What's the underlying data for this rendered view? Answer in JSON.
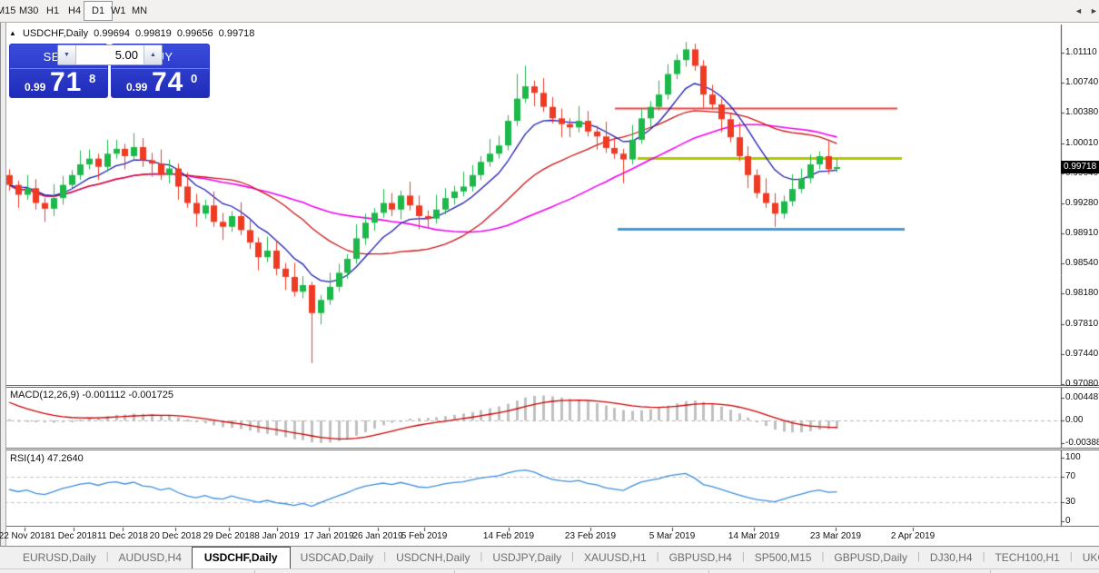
{
  "toolbar": {
    "timeframes": [
      "M15",
      "M30",
      "H1",
      "H4",
      "D1",
      "W1",
      "MN"
    ],
    "active": "D1"
  },
  "header": {
    "symbol": "USDCHF,Daily",
    "open": "0.99694",
    "high": "0.99819",
    "low": "0.99656",
    "close": "0.99718"
  },
  "trade_panel": {
    "sell_label": "SELL",
    "buy_label": "BUY",
    "volume": "5.00",
    "sell_price": {
      "small": "0.99",
      "big": "71",
      "sup": "8"
    },
    "buy_price": {
      "small": "0.99",
      "big": "74",
      "sup": "0"
    }
  },
  "icons": {
    "ohlc_marker": "▲",
    "spinner_up": "▲",
    "spinner_down": "▼",
    "tab_scroll_left": "◄",
    "tab_scroll_right": "►"
  },
  "macd_panel": {
    "label": "MACD(12,26,9) -0.001112 -0.001725",
    "axis_labels": [
      "0.004487",
      "0.00",
      "-0.003883"
    ]
  },
  "rsi_panel": {
    "label": "RSI(14) 47.2640",
    "axis_labels": [
      "100",
      "70",
      "30",
      "0"
    ]
  },
  "tabs": {
    "items": [
      "EURUSD,Daily",
      "AUDUSD,H4",
      "USDCHF,Daily",
      "USDCAD,Daily",
      "USDCNH,Daily",
      "USDJPY,Daily",
      "XAUUSD,H1",
      "GBPUSD,H4",
      "SP500,M15",
      "GBPUSD,Daily",
      "DJ30,H4",
      "TECH100,H1",
      "UKC"
    ],
    "active": "USDCHF,Daily"
  },
  "chart_data": {
    "type": "candlestick",
    "symbol": "USDCHF",
    "timeframe": "Daily",
    "title": "USDCHF,Daily",
    "current_bar": {
      "open": 0.99694,
      "high": 0.99819,
      "low": 0.99656,
      "close": 0.99718
    },
    "y_axis": {
      "labels": [
        "1.01110",
        "1.00740",
        "1.00380",
        "1.00010",
        "0.99640",
        "0.99280",
        "0.98910",
        "0.98540",
        "0.98180",
        "0.97810",
        "0.97440",
        "0.97080"
      ],
      "current_price": "0.99718",
      "range": [
        0.9708,
        1.0111
      ]
    },
    "x_axis": {
      "labels": [
        "22 Nov 2018",
        "1 Dec 2018",
        "11 Dec 2018",
        "20 Dec 2018",
        "29 Dec 2018",
        "8 Jan 2019",
        "17 Jan 2019",
        "26 Jan 2019",
        "5 Feb 2019",
        "14 Feb 2019",
        "23 Feb 2019",
        "5 Mar 2019",
        "14 Mar 2019",
        "23 Mar 2019",
        "2 Apr 2019"
      ]
    },
    "colors": {
      "bull": "#1cb84a",
      "bear": "#ef3a24",
      "ma_fast": "#1b1bb3",
      "ma_mid": "#cc1414",
      "ma_slow": "#f000f0",
      "macd_hist": "#c0c0c0",
      "macd_signal": "#cc0000",
      "rsi": "#3e8ede",
      "hline_red": "#ef4444",
      "hline_olive": "#afc800",
      "hline_blue": "#3e9adb"
    },
    "moving_averages": [
      {
        "name": "fast",
        "period": 8,
        "method": "ema"
      },
      {
        "name": "mid",
        "period": 20,
        "method": "sma"
      },
      {
        "name": "slow",
        "period": 34,
        "method": "sma"
      }
    ],
    "hlines": [
      {
        "price": 1.0044,
        "color_key": "hline_red"
      },
      {
        "price": 0.9983,
        "color_key": "hline_olive"
      },
      {
        "price": 0.9897,
        "color_key": "hline_blue"
      }
    ],
    "macd": {
      "params": [
        12,
        26,
        9
      ],
      "main_current": -0.001112,
      "signal_current": -0.001725
    },
    "rsi": {
      "period": 14,
      "current": 47.264,
      "levels": [
        70,
        30
      ]
    },
    "candles": [
      [
        0.9962,
        0.9969,
        0.9943,
        0.995
      ],
      [
        0.995,
        0.9955,
        0.9922,
        0.9938
      ],
      [
        0.9938,
        0.9962,
        0.9932,
        0.9946
      ],
      [
        0.9946,
        0.9957,
        0.992,
        0.9928
      ],
      [
        0.9928,
        0.9934,
        0.9905,
        0.9921
      ],
      [
        0.9921,
        0.9951,
        0.9912,
        0.9934
      ],
      [
        0.9934,
        0.9961,
        0.9926,
        0.995
      ],
      [
        0.995,
        0.9968,
        0.9946,
        0.9962
      ],
      [
        0.9962,
        0.9992,
        0.9956,
        0.9975
      ],
      [
        0.9975,
        0.9993,
        0.9969,
        0.9982
      ],
      [
        0.9982,
        0.9988,
        0.9956,
        0.9972
      ],
      [
        0.9972,
        1.0005,
        0.9966,
        0.9988
      ],
      [
        0.9988,
        1.0005,
        0.9982,
        0.9994
      ],
      [
        0.9994,
        1.0,
        0.9969,
        0.9985
      ],
      [
        0.9985,
        1.0013,
        0.9979,
        0.9996
      ],
      [
        0.9996,
        1.0007,
        0.9972,
        0.998
      ],
      [
        0.998,
        0.9989,
        0.996,
        0.9976
      ],
      [
        0.9976,
        0.9993,
        0.9956,
        0.9962
      ],
      [
        0.9962,
        0.9981,
        0.9952,
        0.997
      ],
      [
        0.997,
        0.9976,
        0.9932,
        0.9948
      ],
      [
        0.9948,
        0.9965,
        0.9922,
        0.9928
      ],
      [
        0.9928,
        0.9939,
        0.9899,
        0.9915
      ],
      [
        0.9915,
        0.9932,
        0.9909,
        0.9925
      ],
      [
        0.9925,
        0.9942,
        0.9899,
        0.9905
      ],
      [
        0.9905,
        0.9916,
        0.9883,
        0.9899
      ],
      [
        0.9899,
        0.9918,
        0.9893,
        0.9912
      ],
      [
        0.9912,
        0.9929,
        0.9889,
        0.9895
      ],
      [
        0.9895,
        0.9907,
        0.9872,
        0.988
      ],
      [
        0.988,
        0.9886,
        0.9846,
        0.9862
      ],
      [
        0.9862,
        0.9887,
        0.9856,
        0.987
      ],
      [
        0.987,
        0.9882,
        0.984,
        0.9848
      ],
      [
        0.9848,
        0.9855,
        0.9822,
        0.9838
      ],
      [
        0.9838,
        0.9855,
        0.9814,
        0.982
      ],
      [
        0.982,
        0.9839,
        0.9812,
        0.9828
      ],
      [
        0.9828,
        0.9832,
        0.9733,
        0.9794
      ],
      [
        0.9794,
        0.9816,
        0.978,
        0.981
      ],
      [
        0.981,
        0.9843,
        0.9804,
        0.9826
      ],
      [
        0.9826,
        0.9854,
        0.982,
        0.9843
      ],
      [
        0.9843,
        0.9866,
        0.9836,
        0.986
      ],
      [
        0.986,
        0.9902,
        0.9854,
        0.9885
      ],
      [
        0.9885,
        0.9915,
        0.9877,
        0.9904
      ],
      [
        0.9904,
        0.9922,
        0.9894,
        0.9916
      ],
      [
        0.9916,
        0.9945,
        0.991,
        0.9928
      ],
      [
        0.9928,
        0.994,
        0.9912,
        0.992
      ],
      [
        0.992,
        0.9943,
        0.9908,
        0.9937
      ],
      [
        0.9937,
        0.9954,
        0.9919,
        0.9925
      ],
      [
        0.9925,
        0.9937,
        0.9896,
        0.9912
      ],
      [
        0.9912,
        0.9919,
        0.9898,
        0.9909
      ],
      [
        0.9909,
        0.9938,
        0.9903,
        0.992
      ],
      [
        0.992,
        0.9946,
        0.9914,
        0.9934
      ],
      [
        0.9934,
        0.9949,
        0.9926,
        0.9942
      ],
      [
        0.9942,
        0.9966,
        0.9936,
        0.9948
      ],
      [
        0.9948,
        0.9974,
        0.9942,
        0.9962
      ],
      [
        0.9962,
        0.9985,
        0.9956,
        0.9978
      ],
      [
        0.9978,
        1.0006,
        0.9972,
        0.9988
      ],
      [
        0.9988,
        1.001,
        0.9982,
        0.9998
      ],
      [
        0.9998,
        1.0035,
        0.9992,
        1.0028
      ],
      [
        1.0028,
        1.0085,
        1.0022,
        1.0055
      ],
      [
        1.0055,
        1.0095,
        1.005,
        1.007
      ],
      [
        1.007,
        1.0077,
        1.0046,
        1.0062
      ],
      [
        1.0062,
        1.008,
        1.0039,
        1.0045
      ],
      [
        1.0045,
        1.0057,
        1.0025,
        1.0031
      ],
      [
        1.0031,
        1.0043,
        1.0008,
        1.0024
      ],
      [
        1.0024,
        1.0031,
        1.0008,
        1.002
      ],
      [
        1.002,
        1.0046,
        1.0014,
        1.0028
      ],
      [
        1.0028,
        1.004,
        1.0009,
        1.0015
      ],
      [
        1.0015,
        1.0022,
        0.9993,
        1.0009
      ],
      [
        1.0009,
        1.0027,
        0.9989,
        0.9995
      ],
      [
        0.9995,
        1.0007,
        0.9982,
        0.9988
      ],
      [
        0.9988,
        0.9994,
        0.9952,
        0.9981
      ],
      [
        0.9981,
        1.0023,
        0.9975,
        1.0005
      ],
      [
        1.0005,
        1.0043,
        1.0,
        1.0031
      ],
      [
        1.0031,
        1.0052,
        1.0021,
        1.0045
      ],
      [
        1.0045,
        1.0077,
        1.004,
        1.006
      ],
      [
        1.006,
        1.0097,
        1.0054,
        1.0085
      ],
      [
        1.0085,
        1.0109,
        1.0079,
        1.0102
      ],
      [
        1.0102,
        1.0124,
        1.0094,
        1.0115
      ],
      [
        1.0115,
        1.0122,
        1.0089,
        1.0095
      ],
      [
        1.0095,
        1.0102,
        1.0044,
        1.006
      ],
      [
        1.006,
        1.0072,
        1.0042,
        1.0048
      ],
      [
        1.0048,
        1.0055,
        1.0014,
        1.003
      ],
      [
        1.003,
        1.0037,
        1.0002,
        1.0008
      ],
      [
        1.0008,
        1.0026,
        0.9979,
        0.9985
      ],
      [
        0.9985,
        0.9997,
        0.9946,
        0.9962
      ],
      [
        0.9962,
        0.9969,
        0.9934,
        0.994
      ],
      [
        0.994,
        0.9958,
        0.9922,
        0.9928
      ],
      [
        0.9928,
        0.994,
        0.9899,
        0.9915
      ],
      [
        0.9915,
        0.9937,
        0.9909,
        0.993
      ],
      [
        0.993,
        0.9963,
        0.9924,
        0.9945
      ],
      [
        0.9945,
        0.997,
        0.994,
        0.9958
      ],
      [
        0.9958,
        0.9987,
        0.9952,
        0.9975
      ],
      [
        0.9975,
        0.9991,
        0.9969,
        0.9985
      ],
      [
        0.9985,
        1.0003,
        0.9963,
        0.9969
      ],
      [
        0.99694,
        0.99819,
        0.99656,
        0.99718
      ]
    ]
  }
}
